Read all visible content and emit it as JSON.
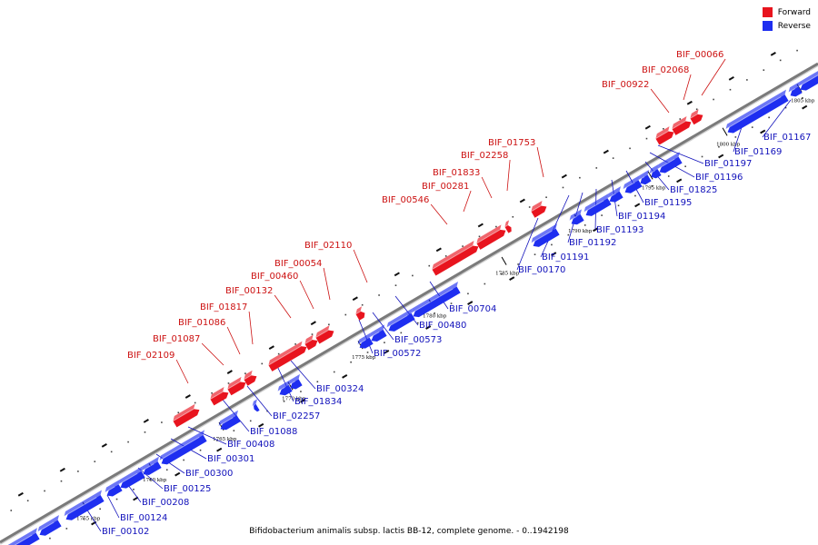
{
  "legend": {
    "forward_label": "Forward",
    "reverse_label": "Reverse"
  },
  "colors": {
    "forward": "#e8141e",
    "reverse": "#1e2ef0",
    "backbone": "#7a7a7a",
    "label_forward": "#cc1111",
    "label_reverse": "#1111bb"
  },
  "footer": {
    "title": "Bifidobacterium animalis subsp. lactis BB-12, complete genome. - 0..1942198"
  },
  "ticks": [
    "1755 kbp",
    "1760 kbp",
    "1765 kbp",
    "1770 kbp",
    "1775 kbp",
    "1780 kbp",
    "1785 kbp",
    "1790 kbp",
    "1795 kbp",
    "1800 kbp",
    "1805 kbp"
  ],
  "forward_labels": [
    "BIF_02109",
    "BIF_01087",
    "BIF_01086",
    "BIF_01817",
    "BIF_00132",
    "BIF_00460",
    "BIF_00054",
    "BIF_02110",
    "BIF_00546",
    "BIF_00281",
    "BIF_01833",
    "BIF_02258",
    "BIF_01753",
    "BIF_00922",
    "BIF_02068",
    "BIF_00066"
  ],
  "reverse_labels": [
    "BIF_00102",
    "BIF_00124",
    "BIF_00208",
    "BIF_00125",
    "BIF_00300",
    "BIF_00301",
    "BIF_00408",
    "BIF_01088",
    "BIF_02257",
    "BIF_01834",
    "BIF_00324",
    "BIF_00572",
    "BIF_00573",
    "BIF_00480",
    "BIF_00704",
    "BIF_00170",
    "BIF_01191",
    "BIF_01192",
    "BIF_01193",
    "BIF_01194",
    "BIF_01195",
    "BIF_01825",
    "BIF_01196",
    "BIF_01197",
    "BIF_01169",
    "BIF_01167"
  ]
}
